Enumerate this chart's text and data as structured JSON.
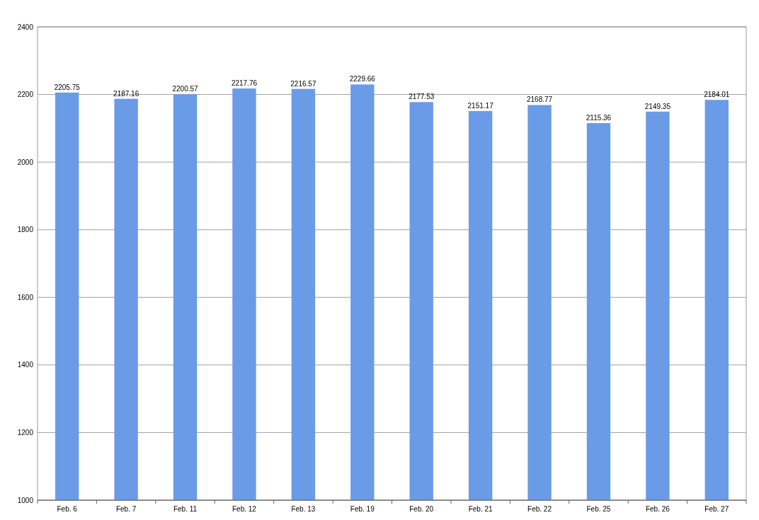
{
  "chart_data": {
    "type": "bar",
    "categories": [
      "Feb. 6",
      "Feb. 7",
      "Feb. 11",
      "Feb. 12",
      "Feb. 13",
      "Feb. 19",
      "Feb. 20",
      "Feb. 21",
      "Feb. 22",
      "Feb. 25",
      "Feb. 26",
      "Feb. 27"
    ],
    "values": [
      2205.75,
      2187.16,
      2200.57,
      2217.76,
      2216.57,
      2229.66,
      2177.53,
      2151.17,
      2168.77,
      2115.36,
      2149.35,
      2184.01
    ],
    "color": "#6a9be6",
    "ylim": [
      1000,
      2400
    ],
    "yticks": [
      1000,
      1200,
      1400,
      1600,
      1800,
      2000,
      2200,
      2400
    ],
    "grid": "y",
    "data_labels": true
  }
}
